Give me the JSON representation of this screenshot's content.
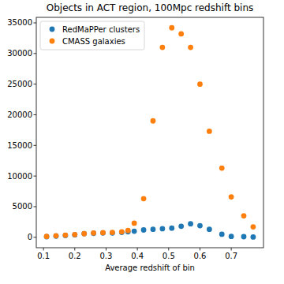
{
  "chart_data": {
    "type": "scatter",
    "title": "Objects in ACT region, 100Mpc redshift bins",
    "x_label": "Average redshift of bin",
    "x": [
      0.11,
      0.14,
      0.17,
      0.2,
      0.23,
      0.26,
      0.29,
      0.32,
      0.35,
      0.37,
      0.39,
      0.42,
      0.45,
      0.48,
      0.51,
      0.54,
      0.57,
      0.6,
      0.63,
      0.67,
      0.7,
      0.74,
      0.77
    ],
    "series": [
      {
        "name": "RedMaPPer clusters",
        "color": "#1f77b4",
        "marker": "circle",
        "values": [
          100,
          200,
          300,
          400,
          600,
          650,
          700,
          700,
          800,
          900,
          1000,
          1200,
          1300,
          1400,
          1500,
          1800,
          2200,
          1900,
          1300,
          500,
          150,
          100,
          50
        ]
      },
      {
        "name": "CMASS galaxies",
        "color": "#ff7f0e",
        "marker": "circle",
        "values": [
          150,
          250,
          350,
          450,
          600,
          700,
          750,
          800,
          900,
          1100,
          2300,
          6300,
          19000,
          31000,
          34200,
          33200,
          31000,
          25000,
          17300,
          11300,
          6600,
          3500,
          1700
        ]
      }
    ],
    "xlim": [
      0.077,
      0.803
    ],
    "ylim": [
      -1700,
      35900
    ],
    "xticks": [
      0.1,
      0.2,
      0.3,
      0.4,
      0.5,
      0.6,
      0.7
    ],
    "yticks": [
      0,
      5000,
      10000,
      15000,
      20000,
      25000,
      30000,
      35000
    ],
    "legend": "upper-left",
    "grid": false
  }
}
